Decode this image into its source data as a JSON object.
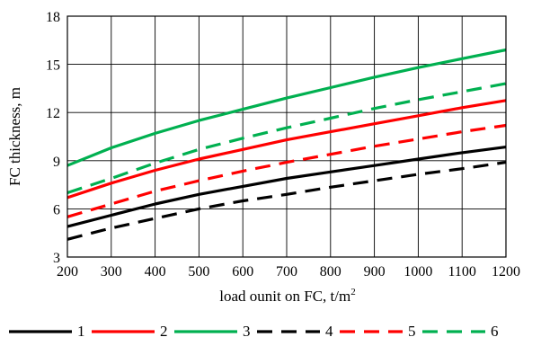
{
  "chart_data": {
    "type": "line",
    "title": "",
    "xlabel": "load ounit on FC, t/m",
    "xlabel_sup": "2",
    "ylabel": "FC thickness, m",
    "xlim": [
      200,
      1200
    ],
    "ylim": [
      3,
      18
    ],
    "x_ticks": [
      "200",
      "300",
      "400",
      "500",
      "600",
      "700",
      "800",
      "900",
      "1000",
      "1100",
      "1200"
    ],
    "y_ticks": [
      "3",
      "6",
      "9",
      "12",
      "15",
      "18"
    ],
    "grid": true,
    "legend_position": "bottom",
    "x": [
      200,
      300,
      400,
      500,
      600,
      700,
      800,
      900,
      1000,
      1100,
      1200
    ],
    "series": [
      {
        "name": "1",
        "color": "#000000",
        "dash": "solid",
        "values": [
          4.9,
          5.6,
          6.3,
          6.9,
          7.4,
          7.9,
          8.3,
          8.7,
          9.1,
          9.5,
          9.85
        ]
      },
      {
        "name": "2",
        "color": "#ff0000",
        "dash": "solid",
        "values": [
          6.7,
          7.6,
          8.4,
          9.1,
          9.7,
          10.3,
          10.8,
          11.3,
          11.8,
          12.3,
          12.75
        ]
      },
      {
        "name": "3",
        "color": "#00b050",
        "dash": "solid",
        "values": [
          8.7,
          9.8,
          10.7,
          11.5,
          12.2,
          12.9,
          13.55,
          14.2,
          14.8,
          15.35,
          15.9
        ]
      },
      {
        "name": "4",
        "color": "#000000",
        "dash": "dashed",
        "values": [
          4.1,
          4.8,
          5.4,
          6.0,
          6.5,
          6.9,
          7.35,
          7.75,
          8.15,
          8.5,
          8.9
        ]
      },
      {
        "name": "5",
        "color": "#ff0000",
        "dash": "dashed",
        "values": [
          5.5,
          6.3,
          7.1,
          7.75,
          8.35,
          8.9,
          9.4,
          9.9,
          10.35,
          10.8,
          11.2
        ]
      },
      {
        "name": "6",
        "color": "#00b050",
        "dash": "dashed",
        "values": [
          7.0,
          7.9,
          8.85,
          9.7,
          10.4,
          11.05,
          11.65,
          12.25,
          12.8,
          13.3,
          13.8
        ]
      }
    ]
  }
}
